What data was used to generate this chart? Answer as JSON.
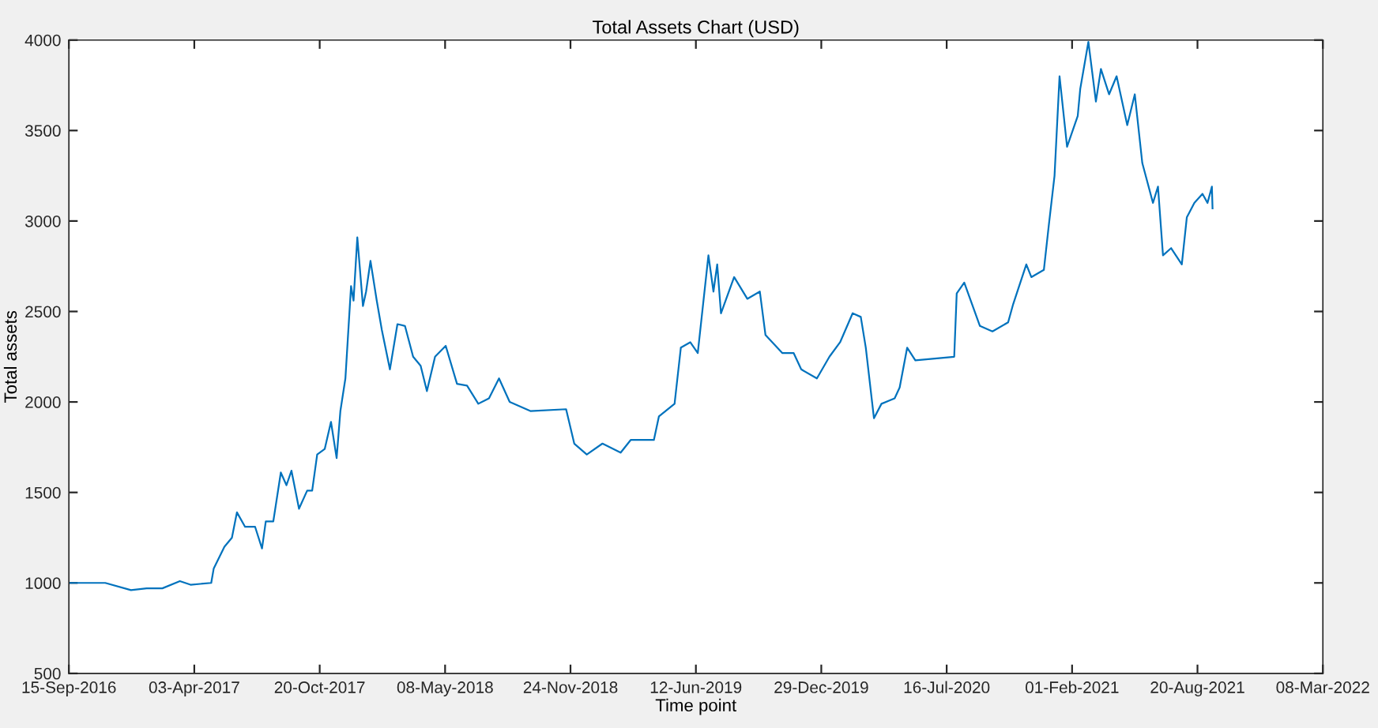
{
  "chart_data": {
    "type": "line",
    "title": "Total Assets Chart (USD)",
    "xlabel": "Time point",
    "ylabel": "Total assets",
    "xlim": [
      "2016-09-15",
      "2022-03-08"
    ],
    "xticks": [
      {
        "value": "2016-09-15",
        "label": "15-Sep-2016"
      },
      {
        "value": "2017-04-03",
        "label": "03-Apr-2017"
      },
      {
        "value": "2017-10-20",
        "label": "20-Oct-2017"
      },
      {
        "value": "2018-05-08",
        "label": "08-May-2018"
      },
      {
        "value": "2018-11-24",
        "label": "24-Nov-2018"
      },
      {
        "value": "2019-06-12",
        "label": "12-Jun-2019"
      },
      {
        "value": "2019-12-29",
        "label": "29-Dec-2019"
      },
      {
        "value": "2020-07-16",
        "label": "16-Jul-2020"
      },
      {
        "value": "2021-02-01",
        "label": "01-Feb-2021"
      },
      {
        "value": "2021-08-20",
        "label": "20-Aug-2021"
      },
      {
        "value": "2022-03-08",
        "label": "08-Mar-2022"
      }
    ],
    "ylim": [
      500,
      4000
    ],
    "yticks": [
      500,
      1000,
      1500,
      2000,
      2500,
      3000,
      3500,
      4000
    ],
    "grid": false,
    "marker": "none",
    "line_style": "solid",
    "series": [
      {
        "color": "#0072bd",
        "x": [
          "2016-09-15",
          "2016-11-12",
          "2016-12-23",
          "2017-01-17",
          "2017-02-11",
          "2017-03-11",
          "2017-03-28",
          "2017-04-30",
          "2017-05-04",
          "2017-05-21",
          "2017-06-02",
          "2017-06-10",
          "2017-06-23",
          "2017-07-09",
          "2017-07-20",
          "2017-07-26",
          "2017-08-07",
          "2017-08-19",
          "2017-08-28",
          "2017-09-05",
          "2017-09-17",
          "2017-09-30",
          "2017-10-08",
          "2017-10-16",
          "2017-10-28",
          "2017-11-07",
          "2017-11-16",
          "2017-11-22",
          "2017-11-30",
          "2017-12-09",
          "2017-12-13",
          "2017-12-19",
          "2017-12-28",
          "2018-01-02",
          "2018-01-09",
          "2018-01-19",
          "2018-01-27",
          "2018-02-09",
          "2018-02-21",
          "2018-03-05",
          "2018-03-18",
          "2018-03-30",
          "2018-04-09",
          "2018-04-22",
          "2018-05-09",
          "2018-05-27",
          "2018-06-12",
          "2018-06-30",
          "2018-07-17",
          "2018-08-02",
          "2018-08-19",
          "2018-09-21",
          "2018-11-17",
          "2018-11-30",
          "2018-12-20",
          "2019-01-14",
          "2019-02-12",
          "2019-02-28",
          "2019-04-06",
          "2019-04-14",
          "2019-05-09",
          "2019-05-19",
          "2019-06-03",
          "2019-06-15",
          "2019-07-02",
          "2019-07-10",
          "2019-07-16",
          "2019-07-22",
          "2019-08-12",
          "2019-09-02",
          "2019-09-22",
          "2019-10-01",
          "2019-10-28",
          "2019-11-15",
          "2019-11-27",
          "2019-12-22",
          "2020-01-11",
          "2020-01-28",
          "2020-02-17",
          "2020-03-01",
          "2020-03-09",
          "2020-03-22",
          "2020-04-03",
          "2020-04-24",
          "2020-05-02",
          "2020-05-14",
          "2020-05-27",
          "2020-07-28",
          "2020-08-01",
          "2020-08-13",
          "2020-09-07",
          "2020-09-27",
          "2020-10-22",
          "2020-10-30",
          "2020-11-20",
          "2020-11-28",
          "2020-12-18",
          "2020-12-26",
          "2021-01-04",
          "2021-01-12",
          "2021-01-24",
          "2021-02-10",
          "2021-02-14",
          "2021-02-27",
          "2021-03-11",
          "2021-03-19",
          "2021-04-01",
          "2021-04-13",
          "2021-04-30",
          "2021-05-12",
          "2021-05-24",
          "2021-06-10",
          "2021-06-18",
          "2021-06-26",
          "2021-07-09",
          "2021-07-26",
          "2021-08-03",
          "2021-08-15",
          "2021-08-28",
          "2021-09-05",
          "2021-09-12",
          "2021-09-13"
        ],
        "values": [
          1000,
          1000,
          960,
          970,
          970,
          1010,
          990,
          1000,
          1080,
          1200,
          1250,
          1390,
          1310,
          1310,
          1190,
          1340,
          1340,
          1610,
          1540,
          1620,
          1410,
          1510,
          1510,
          1710,
          1740,
          1890,
          1690,
          1950,
          2130,
          2640,
          2560,
          2910,
          2530,
          2610,
          2780,
          2560,
          2400,
          2180,
          2430,
          2420,
          2250,
          2200,
          2060,
          2250,
          2310,
          2100,
          2090,
          1990,
          2020,
          2130,
          2000,
          1950,
          1960,
          1770,
          1710,
          1770,
          1720,
          1790,
          1790,
          1920,
          1990,
          2300,
          2330,
          2270,
          2810,
          2610,
          2760,
          2490,
          2690,
          2570,
          2610,
          2370,
          2270,
          2270,
          2180,
          2130,
          2250,
          2330,
          2490,
          2470,
          2300,
          1910,
          1990,
          2020,
          2080,
          2300,
          2230,
          2250,
          2600,
          2660,
          2420,
          2390,
          2440,
          2540,
          2760,
          2690,
          2730,
          2980,
          3250,
          3800,
          3410,
          3580,
          3730,
          3990,
          3660,
          3840,
          3700,
          3800,
          3530,
          3700,
          3320,
          3100,
          3190,
          2810,
          2850,
          2760,
          3020,
          3100,
          3150,
          3100,
          3190,
          3070
        ]
      }
    ]
  }
}
